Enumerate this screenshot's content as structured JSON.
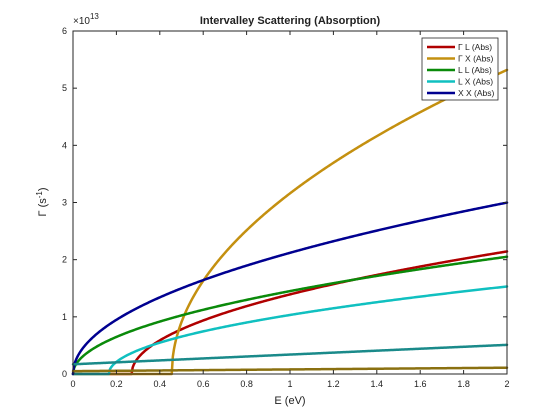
{
  "chart_data": {
    "type": "line",
    "title": "Intervalley Scattering (Absorption)",
    "xlabel": "E (eV)",
    "ylabel_symbol": "Γ",
    "ylabel_unit_prefix": "(s",
    "ylabel_unit_exp": "-1",
    "ylabel_unit_suffix": ")",
    "y_multiplier_base": "×10",
    "y_multiplier_exp": "13",
    "xlim": [
      0,
      2
    ],
    "ylim": [
      0,
      6
    ],
    "xticks": [
      "0",
      "0.2",
      "0.4",
      "0.6",
      "0.8",
      "1",
      "1.2",
      "1.4",
      "1.6",
      "1.8",
      "2"
    ],
    "yticks": [
      "0",
      "1",
      "2",
      "3",
      "4",
      "5",
      "6"
    ],
    "grid": false,
    "legend_position": "top-right",
    "series": [
      {
        "name": "Γ L (Abs)",
        "color": "#b00000",
        "threshold": 0.27,
        "coef": 1.63,
        "exponent": 0.5,
        "offset": 0,
        "in_legend": true
      },
      {
        "name": "Γ X (Abs)",
        "color": "#c49010",
        "threshold": 0.455,
        "coef": 4.28,
        "exponent": 0.5,
        "offset": 0,
        "in_legend": true
      },
      {
        "name": "L L (Abs)",
        "color": "#0a8a0a",
        "threshold": 0.0,
        "coef": 1.45,
        "exponent": 0.5,
        "offset": 0,
        "in_legend": true
      },
      {
        "name": "L X (Abs)",
        "color": "#10c0c0",
        "threshold": 0.165,
        "coef": 1.13,
        "exponent": 0.5,
        "offset": 0,
        "in_legend": true
      },
      {
        "name": "X X (Abs)",
        "color": "#000090",
        "threshold": 0.0,
        "coef": 2.12,
        "exponent": 0.5,
        "offset": 0,
        "in_legend": true
      },
      {
        "name": "",
        "color": "#1a8a8a",
        "threshold": 0.0,
        "coef": 0.17,
        "exponent": 1.0,
        "offset": 0.17,
        "in_legend": false
      },
      {
        "name": "",
        "color": "#8a7010",
        "threshold": 0.0,
        "coef": 0.03,
        "exponent": 1.0,
        "offset": 0.05,
        "in_legend": false
      }
    ]
  }
}
